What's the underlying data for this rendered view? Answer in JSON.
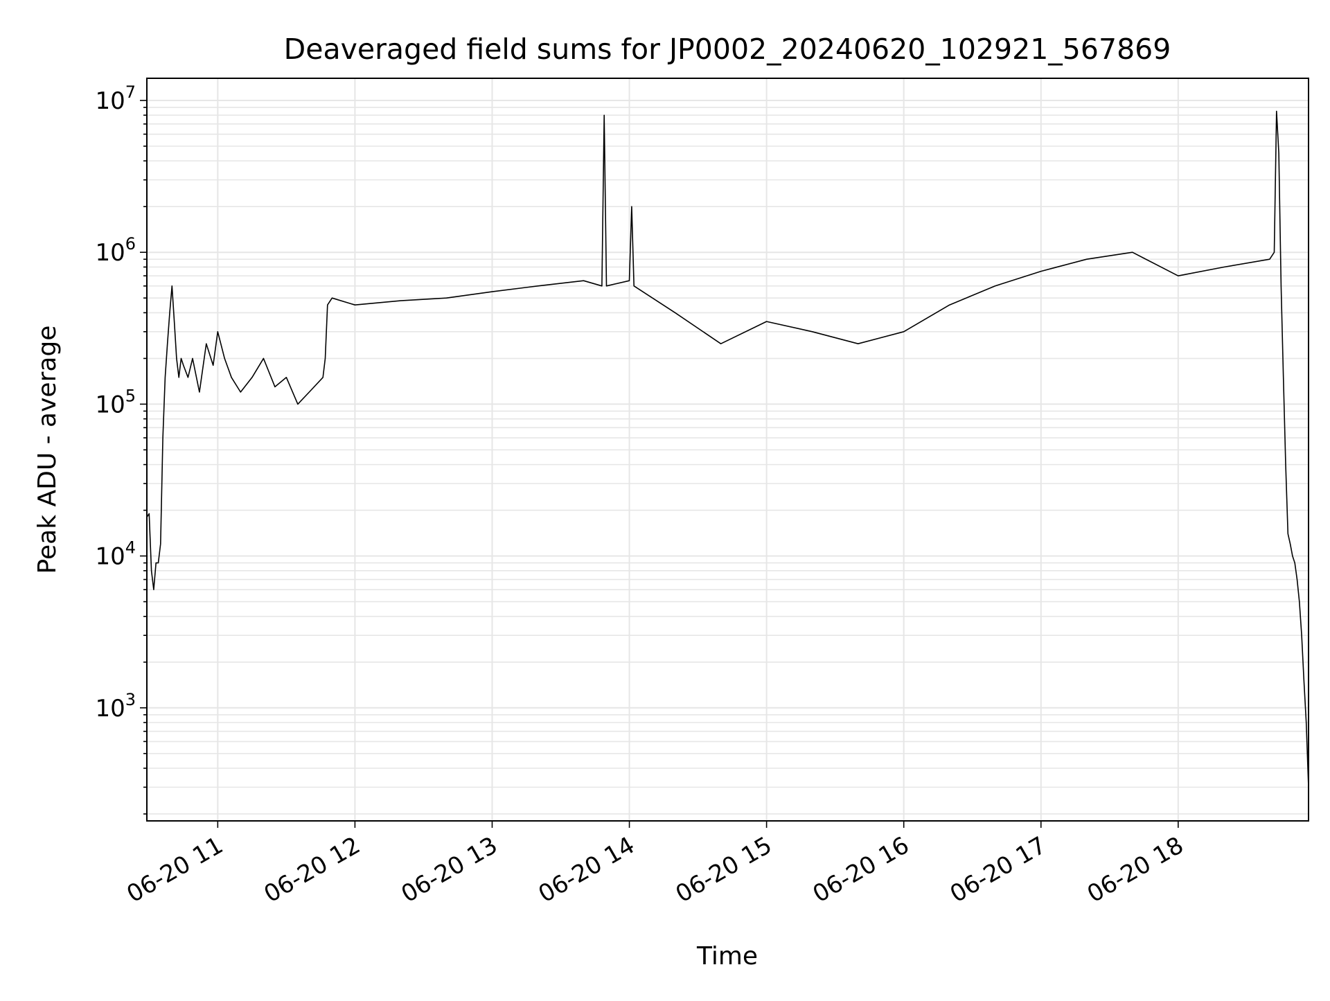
{
  "chart_data": {
    "type": "line",
    "title": "Deaveraged field sums for JP0002_20240620_102921_567869",
    "xlabel": "Time",
    "ylabel": "Peak ADU - average",
    "yscale": "log",
    "ylim": [
      180,
      14000000
    ],
    "xlim": [
      "2024-06-20 10:29",
      "2024-06-20 18:57"
    ],
    "grid": true,
    "x_ticks": [
      "06-20 11",
      "06-20 12",
      "06-20 13",
      "06-20 14",
      "06-20 15",
      "06-20 16",
      "06-20 17",
      "06-20 18"
    ],
    "y_ticks": [
      {
        "base": "10",
        "exp": "3",
        "value": 1000
      },
      {
        "base": "10",
        "exp": "4",
        "value": 10000
      },
      {
        "base": "10",
        "exp": "5",
        "value": 100000
      },
      {
        "base": "10",
        "exp": "6",
        "value": 1000000
      },
      {
        "base": "10",
        "exp": "7",
        "value": 10000000
      }
    ],
    "line_color": "#000000",
    "grid_color": "#e6e6e6",
    "series": [
      {
        "x": [
          "2024-06-20 10:29",
          "2024-06-20 10:30",
          "2024-06-20 10:31",
          "2024-06-20 10:32",
          "2024-06-20 10:33",
          "2024-06-20 10:34",
          "2024-06-20 10:35",
          "2024-06-20 10:36",
          "2024-06-20 10:37",
          "2024-06-20 10:38",
          "2024-06-20 10:39",
          "2024-06-20 10:40",
          "2024-06-20 10:41",
          "2024-06-20 10:42",
          "2024-06-20 10:43",
          "2024-06-20 10:44",
          "2024-06-20 10:45",
          "2024-06-20 10:47",
          "2024-06-20 10:49",
          "2024-06-20 10:52",
          "2024-06-20 10:55",
          "2024-06-20 10:58",
          "2024-06-20 11:00",
          "2024-06-20 11:03",
          "2024-06-20 11:06",
          "2024-06-20 11:10",
          "2024-06-20 11:15",
          "2024-06-20 11:20",
          "2024-06-20 11:25",
          "2024-06-20 11:30",
          "2024-06-20 11:35",
          "2024-06-20 11:40",
          "2024-06-20 11:46",
          "2024-06-20 11:47",
          "2024-06-20 11:48",
          "2024-06-20 11:50",
          "2024-06-20 12:00",
          "2024-06-20 12:20",
          "2024-06-20 12:40",
          "2024-06-20 13:00",
          "2024-06-20 13:20",
          "2024-06-20 13:40",
          "2024-06-20 13:48",
          "2024-06-20 13:49",
          "2024-06-20 13:50",
          "2024-06-20 14:00",
          "2024-06-20 14:01",
          "2024-06-20 14:02",
          "2024-06-20 14:20",
          "2024-06-20 14:40",
          "2024-06-20 15:00",
          "2024-06-20 15:20",
          "2024-06-20 15:40",
          "2024-06-20 16:00",
          "2024-06-20 16:20",
          "2024-06-20 16:40",
          "2024-06-20 17:00",
          "2024-06-20 17:20",
          "2024-06-20 17:40",
          "2024-06-20 18:00",
          "2024-06-20 18:20",
          "2024-06-20 18:40",
          "2024-06-20 18:42",
          "2024-06-20 18:43",
          "2024-06-20 18:44",
          "2024-06-20 18:45",
          "2024-06-20 18:46",
          "2024-06-20 18:47",
          "2024-06-20 18:48",
          "2024-06-20 18:49",
          "2024-06-20 18:50",
          "2024-06-20 18:51",
          "2024-06-20 18:52",
          "2024-06-20 18:53",
          "2024-06-20 18:54",
          "2024-06-20 18:55",
          "2024-06-20 18:56",
          "2024-06-20 18:57"
        ],
        "y": [
          18000,
          19000,
          8000,
          6000,
          9000,
          9000,
          12000,
          60000,
          150000,
          250000,
          400000,
          600000,
          350000,
          200000,
          150000,
          200000,
          180000,
          150000,
          200000,
          120000,
          250000,
          180000,
          300000,
          200000,
          150000,
          120000,
          150000,
          200000,
          130000,
          150000,
          100000,
          120000,
          150000,
          200000,
          450000,
          500000,
          450000,
          480000,
          500000,
          550000,
          600000,
          650000,
          600000,
          8000000,
          600000,
          650000,
          2000000,
          600000,
          400000,
          250000,
          350000,
          300000,
          250000,
          300000,
          450000,
          600000,
          750000,
          900000,
          1000000,
          700000,
          800000,
          900000,
          1000000,
          8500000,
          4500000,
          600000,
          150000,
          40000,
          14000,
          12000,
          10000,
          9000,
          7000,
          5000,
          3000,
          1500,
          800,
          300
        ]
      }
    ]
  }
}
